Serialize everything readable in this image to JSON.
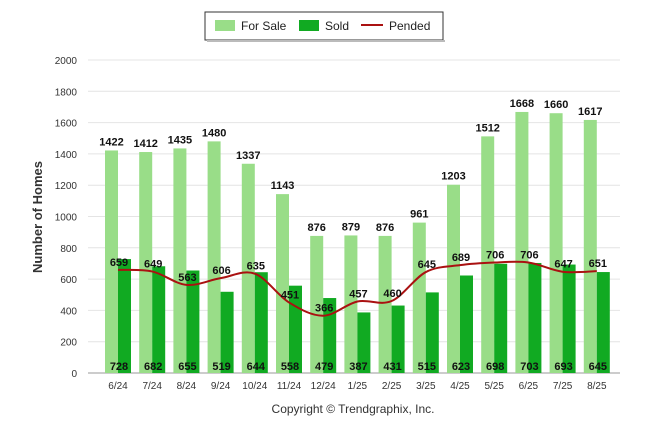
{
  "chart_data": {
    "type": "bar",
    "categories": [
      "6/24",
      "7/24",
      "8/24",
      "9/24",
      "10/24",
      "11/24",
      "12/24",
      "1/25",
      "2/25",
      "3/25",
      "4/25",
      "5/25",
      "6/25",
      "7/25",
      "8/25"
    ],
    "series": [
      {
        "name": "For Sale",
        "kind": "bar",
        "color": "#99dd88",
        "values": [
          1422,
          1412,
          1435,
          1480,
          1337,
          1143,
          876,
          879,
          876,
          961,
          1203,
          1512,
          1668,
          1660,
          1617
        ]
      },
      {
        "name": "Sold",
        "kind": "bar",
        "color": "#11aa22",
        "values": [
          728,
          682,
          655,
          519,
          644,
          558,
          479,
          387,
          431,
          515,
          623,
          698,
          703,
          693,
          645
        ]
      },
      {
        "name": "Pended",
        "kind": "line",
        "color": "#aa1111",
        "values": [
          659,
          649,
          563,
          606,
          635,
          451,
          366,
          457,
          460,
          645,
          689,
          706,
          706,
          647,
          651
        ]
      }
    ],
    "ylabel": "Number of Homes",
    "ylim": [
      0,
      2000
    ],
    "yticks": [
      0,
      200,
      400,
      600,
      800,
      1000,
      1200,
      1400,
      1600,
      1800,
      2000
    ],
    "grid": true,
    "legend": "top-center",
    "copyright": "Copyright © Trendgraphix, Inc."
  }
}
